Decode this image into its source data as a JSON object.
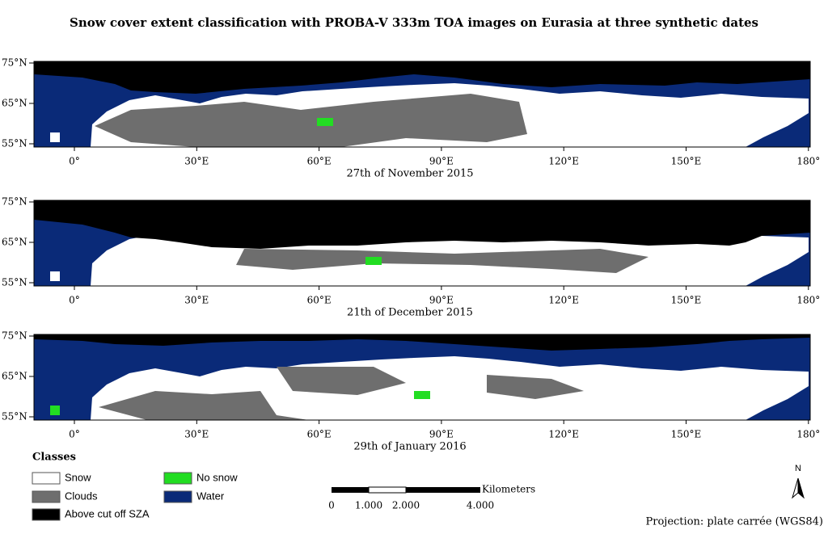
{
  "title": "Snow cover extent classification with PROBA-V 333m TOA images on Eurasia at three synthetic dates",
  "lat_labels": [
    "75°N",
    "65°N",
    "55°N"
  ],
  "lon_labels": [
    "0°",
    "30°E",
    "60°E",
    "90°E",
    "120°E",
    "150°E",
    "180°"
  ],
  "panels": [
    {
      "caption": "27th of November 2015"
    },
    {
      "caption": "21th of December 2015"
    },
    {
      "caption": "29th of January 2016"
    }
  ],
  "legend": {
    "title": "Classes",
    "items": [
      {
        "label": "Snow",
        "color": "#ffffff"
      },
      {
        "label": "Clouds",
        "color": "#6e6e6e"
      },
      {
        "label": "Above cut off SZA",
        "color": "#000000"
      },
      {
        "label": "No snow",
        "color": "#22dd22"
      },
      {
        "label": "Water",
        "color": "#0a2a78"
      }
    ]
  },
  "scale_bar": {
    "unit": "Kilometers",
    "labels": [
      "0",
      "1.000",
      "2.000",
      "4.000"
    ]
  },
  "north": "N",
  "projection": "Projection: plate carrée (WGS84)"
}
